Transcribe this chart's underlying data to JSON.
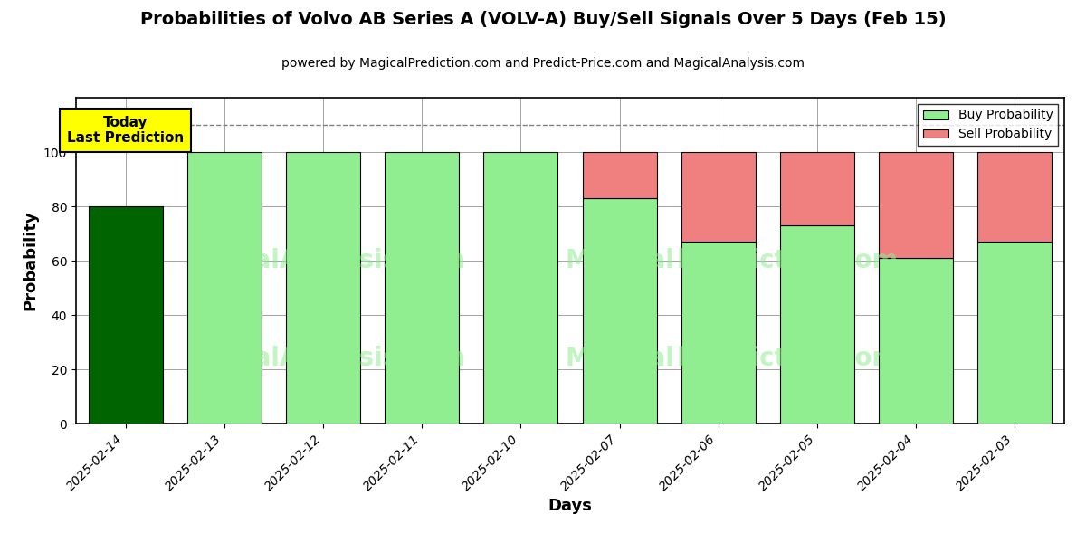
{
  "title": "Probabilities of Volvo AB Series A (VOLV-A) Buy/Sell Signals Over 5 Days (Feb 15)",
  "subtitle": "powered by MagicalPrediction.com and Predict-Price.com and MagicalAnalysis.com",
  "xlabel": "Days",
  "ylabel": "Probability",
  "categories": [
    "2025-02-14",
    "2025-02-13",
    "2025-02-12",
    "2025-02-11",
    "2025-02-10",
    "2025-02-07",
    "2025-02-06",
    "2025-02-05",
    "2025-02-04",
    "2025-02-03"
  ],
  "buy_values": [
    80,
    100,
    100,
    100,
    100,
    83,
    67,
    73,
    61,
    67
  ],
  "sell_values": [
    0,
    0,
    0,
    0,
    0,
    17,
    33,
    27,
    39,
    33
  ],
  "today_bar_color": "#006400",
  "buy_color": "#90EE90",
  "sell_color": "#F08080",
  "today_annotation_bg": "#FFFF00",
  "today_annotation_text": "Today\nLast Prediction",
  "dashed_line_y": 110,
  "ylim": [
    0,
    120
  ],
  "yticks": [
    0,
    20,
    40,
    60,
    80,
    100
  ],
  "legend_buy": "Buy Probability",
  "legend_sell": "Sell Probability",
  "watermark_texts": [
    "calAnalysis.com",
    "MagicalPrediction.com"
  ],
  "figsize": [
    12,
    6
  ],
  "dpi": 100
}
